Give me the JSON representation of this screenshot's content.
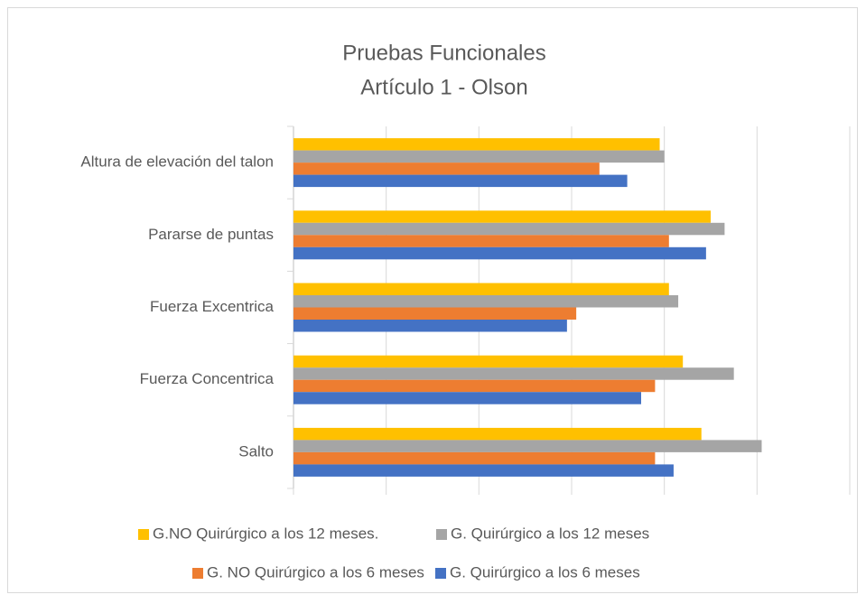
{
  "chart_data": {
    "type": "barh",
    "title": "Pruebas Funcionales",
    "subtitle": "Artículo 1 - Olson",
    "categories": [
      "Altura de elevación del talon",
      "Pararse de puntas",
      "Fuerza Excentrica",
      "Fuerza Concentrica",
      "Salto"
    ],
    "series": [
      {
        "name": "G.NO Quirúrgico a los 12 meses.",
        "color": "#ffc000",
        "values": [
          3.95,
          4.5,
          4.05,
          4.2,
          4.4
        ]
      },
      {
        "name": "G. Quirúrgico a los 12 meses",
        "color": "#a5a5a5",
        "values": [
          4.0,
          4.65,
          4.15,
          4.75,
          5.05
        ]
      },
      {
        "name": "G. NO Quirúrgico a los 6 meses",
        "color": "#ed7d31",
        "values": [
          3.3,
          4.05,
          3.05,
          3.9,
          3.9
        ]
      },
      {
        "name": "G. Quirúrgico a los 6 meses",
        "color": "#4472c4",
        "values": [
          3.6,
          4.45,
          2.95,
          3.75,
          4.1
        ]
      }
    ],
    "xlim": [
      0,
      6
    ],
    "xticks": [
      0,
      1,
      2,
      3,
      4,
      5,
      6
    ],
    "grid": true,
    "legend": "bottom"
  }
}
